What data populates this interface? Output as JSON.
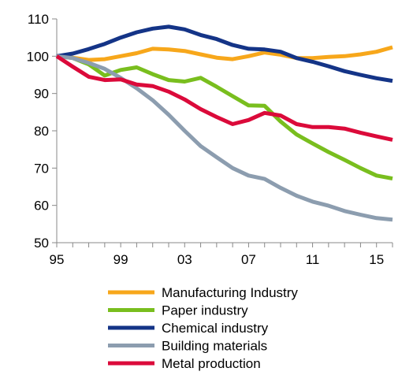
{
  "chart_data": {
    "type": "line",
    "title": "",
    "xlabel": "",
    "ylabel": "",
    "x": [
      1995,
      1996,
      1997,
      1998,
      1999,
      2000,
      2001,
      2002,
      2003,
      2004,
      2005,
      2006,
      2007,
      2008,
      2009,
      2010,
      2011,
      2012,
      2013,
      2014,
      2015,
      2016
    ],
    "xticks": [
      {
        "value": 1995,
        "label": "95"
      },
      {
        "value": 1999,
        "label": "99"
      },
      {
        "value": 2003,
        "label": "03"
      },
      {
        "value": 2007,
        "label": "07"
      },
      {
        "value": 2011,
        "label": "11"
      },
      {
        "value": 2015,
        "label": "15"
      }
    ],
    "xlim": [
      1995,
      2016
    ],
    "ylim": [
      50,
      110
    ],
    "yticks": [
      {
        "value": 50,
        "label": "50"
      },
      {
        "value": 60,
        "label": "60"
      },
      {
        "value": 70,
        "label": "70"
      },
      {
        "value": 80,
        "label": "80"
      },
      {
        "value": 90,
        "label": "90"
      },
      {
        "value": 100,
        "label": "100"
      },
      {
        "value": 110,
        "label": "110"
      }
    ],
    "grid": false,
    "legend_position": "bottom",
    "series": [
      {
        "name": "Manufacturing Industry",
        "color": "#F7A71B",
        "values": [
          100,
          99.6,
          99.0,
          99.2,
          100.0,
          100.8,
          102.0,
          101.8,
          101.4,
          100.5,
          99.6,
          99.2,
          100.0,
          101.0,
          100.4,
          99.5,
          99.5,
          99.8,
          100.0,
          100.5,
          101.2,
          102.4
        ]
      },
      {
        "name": "Paper industry",
        "color": "#79BE1E",
        "values": [
          100,
          99.5,
          97.8,
          94.8,
          96.3,
          97.0,
          95.2,
          93.6,
          93.2,
          94.2,
          91.8,
          89.3,
          86.8,
          86.7,
          82.5,
          79.0,
          76.6,
          74.3,
          72.2,
          70.0,
          68.0,
          67.2
        ]
      },
      {
        "name": "Chemical industry",
        "color": "#143487",
        "values": [
          100,
          100.7,
          101.9,
          103.3,
          105.0,
          106.4,
          107.4,
          107.9,
          107.2,
          105.7,
          104.6,
          103.0,
          102.0,
          101.8,
          101.2,
          99.5,
          98.5,
          97.3,
          96.0,
          95.0,
          94.1,
          93.4
        ]
      },
      {
        "name": "Building materials",
        "color": "#8C9DAF",
        "values": [
          100,
          99.5,
          98.2,
          96.6,
          94.2,
          91.4,
          88.2,
          84.3,
          80.0,
          75.9,
          72.9,
          70.0,
          68.0,
          67.1,
          64.7,
          62.6,
          61.0,
          59.9,
          58.5,
          57.5,
          56.6,
          56.2
        ]
      },
      {
        "name": "Metal production",
        "color": "#DB0A3A",
        "values": [
          100,
          97.2,
          94.5,
          93.6,
          93.8,
          92.4,
          92.0,
          90.5,
          88.4,
          85.8,
          83.7,
          81.8,
          82.9,
          84.8,
          84.1,
          81.8,
          81.0,
          81.0,
          80.6,
          79.5,
          78.5,
          77.6
        ]
      }
    ]
  }
}
